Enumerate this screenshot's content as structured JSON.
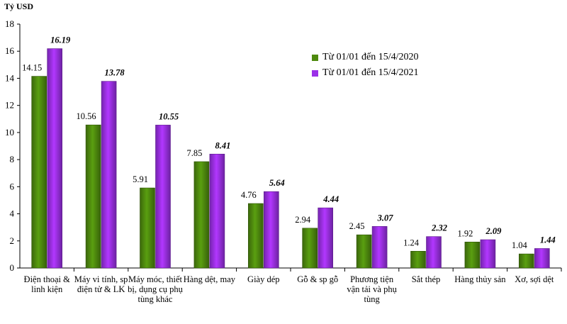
{
  "chart_data": {
    "type": "bar",
    "ylabel": "Tỷ USD",
    "ylim": [
      0,
      18
    ],
    "yticks": [
      "0",
      "2",
      "4",
      "6",
      "8",
      "10",
      "12",
      "14",
      "16",
      "18"
    ],
    "categories": [
      "Điện thoại & linh kiện",
      "Máy vi tính, sp điện tử & LK",
      "Máy móc, thiết bị, dụng cụ phụ tùng khác",
      "Hàng dệt, may",
      "Giày dép",
      "Gỗ & sp gỗ",
      "Phương tiện vận tải và phụ tùng",
      "Sắt thép",
      "Hàng thủy sản",
      "Xơ, sợi dệt"
    ],
    "series": [
      {
        "name": "Từ 01/01 đến 15/4/2020",
        "color": "#4e8a0e",
        "values": [
          14.15,
          10.56,
          5.91,
          7.85,
          4.76,
          2.94,
          2.45,
          1.24,
          1.92,
          1.04
        ],
        "labels": [
          "14.15",
          "10.56",
          "5.91",
          "7.85",
          "4.76",
          "2.94",
          "2.45",
          "1.24",
          "1.92",
          "1.04"
        ]
      },
      {
        "name": "Từ 01/01 đến 15/4/2021",
        "color": "#9b30e8",
        "values": [
          16.19,
          13.78,
          10.55,
          8.41,
          5.64,
          4.44,
          3.07,
          2.32,
          2.09,
          1.44
        ],
        "labels": [
          "16.19",
          "13.78",
          "10.55",
          "8.41",
          "5.64",
          "4.44",
          "3.07",
          "2.32",
          "2.09",
          "1.44"
        ]
      }
    ],
    "legend_position": "top-right",
    "grid": false
  }
}
